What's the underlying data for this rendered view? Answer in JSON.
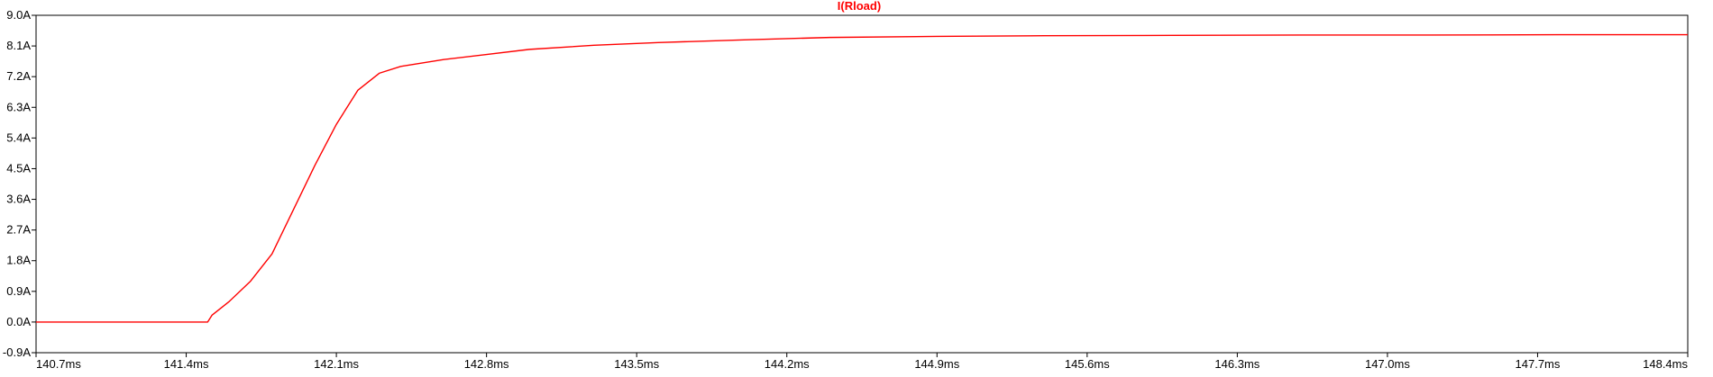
{
  "chart_data": {
    "type": "line",
    "title": "I(Rload)",
    "xlabel": "",
    "ylabel": "",
    "xlim": [
      140.7,
      148.4
    ],
    "ylim": [
      -0.9,
      9.0
    ],
    "x_unit": "ms",
    "y_unit": "A",
    "x_ticks": [
      "140.7ms",
      "141.4ms",
      "142.1ms",
      "142.8ms",
      "143.5ms",
      "144.2ms",
      "144.9ms",
      "145.6ms",
      "146.3ms",
      "147.0ms",
      "147.7ms",
      "148.4ms"
    ],
    "y_ticks": [
      "9.0A",
      "8.1A",
      "7.2A",
      "6.3A",
      "5.4A",
      "4.5A",
      "3.6A",
      "2.7A",
      "1.8A",
      "0.9A",
      "0.0A",
      "-0.9A"
    ],
    "grid": false,
    "series": [
      {
        "name": "I(Rload)",
        "color": "#ff0000",
        "x": [
          140.7,
          141.5,
          141.52,
          141.6,
          141.7,
          141.8,
          141.9,
          142.0,
          142.1,
          142.2,
          142.3,
          142.4,
          142.6,
          142.8,
          143.0,
          143.3,
          143.6,
          144.0,
          144.4,
          144.9,
          145.4,
          146.0,
          146.6,
          147.2,
          147.8,
          148.4
        ],
        "y": [
          0.0,
          0.0,
          0.2,
          0.6,
          1.2,
          2.0,
          3.3,
          4.6,
          5.8,
          6.8,
          7.3,
          7.5,
          7.7,
          7.85,
          8.0,
          8.12,
          8.2,
          8.28,
          8.35,
          8.38,
          8.4,
          8.41,
          8.42,
          8.42,
          8.43,
          8.43
        ]
      }
    ]
  },
  "colors": {
    "trace": "#ff0000",
    "axes": "#000000",
    "background": "#ffffff"
  }
}
